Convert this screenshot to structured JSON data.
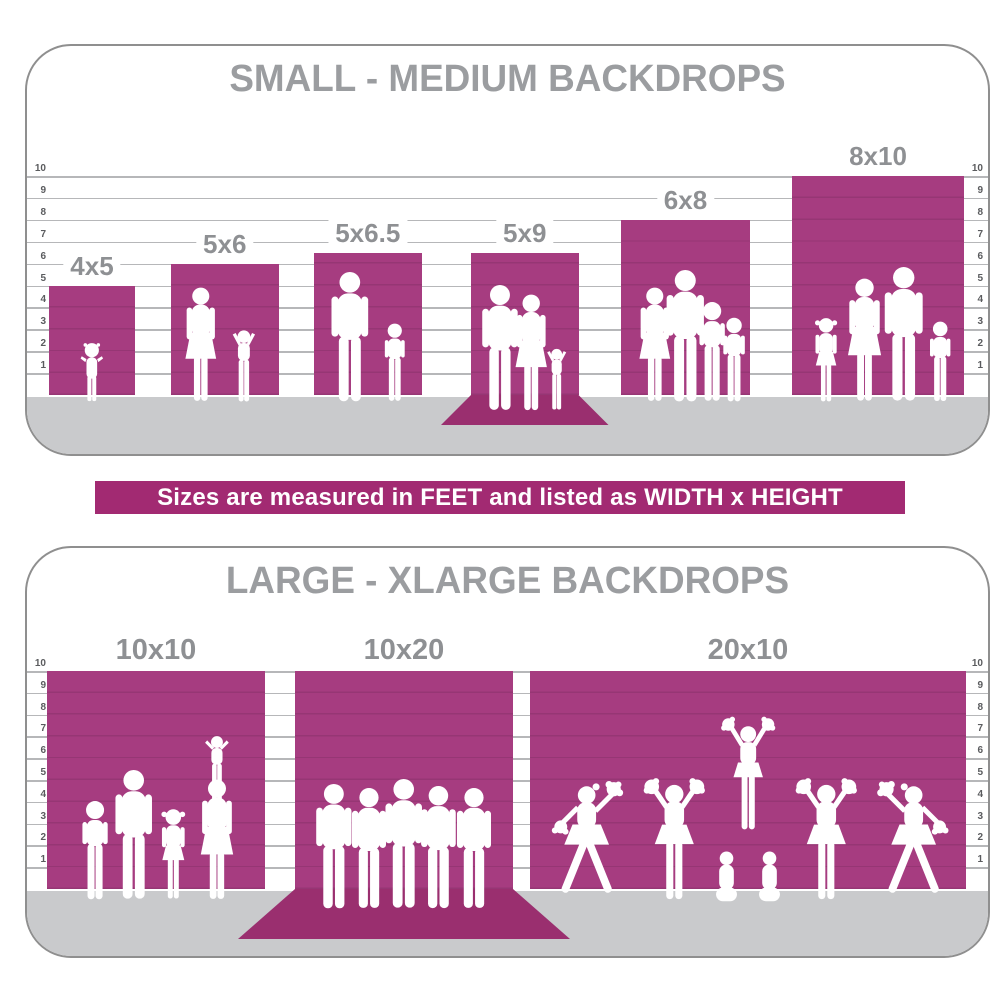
{
  "banner": {
    "text": "Sizes are measured in FEET and listed as WIDTH x HEIGHT"
  },
  "colors": {
    "bar": "#a63c80",
    "floor_sweep": "#9a2f6f",
    "banner_bg": "#a22a72",
    "banner_text": "#ffffff",
    "ground": "#c9cacc",
    "panel_border": "#8f8f8f",
    "title": "#9b9da0",
    "bar_label": "#8e9093",
    "tick": "#5a5b5e",
    "gridline": "#8f9194",
    "silhouette": "#ffffff"
  },
  "chart_data": [
    {
      "type": "bar",
      "title": "SMALL - MEDIUM BACKDROPS",
      "unit": "feet",
      "ylim": [
        0,
        10
      ],
      "axis_ticks": [
        1,
        2,
        3,
        4,
        5,
        6,
        7,
        8,
        9,
        10
      ],
      "categories": [
        "4x5",
        "5x6",
        "5x6.5",
        "5x9",
        "6x8",
        "8x10"
      ],
      "widths_ft": [
        4,
        5,
        5,
        5,
        6,
        8
      ],
      "heights_ft": [
        5,
        6,
        6.5,
        9,
        8,
        10
      ],
      "visible_heights_ft": [
        5,
        6,
        6.5,
        6.5,
        8,
        10
      ],
      "floor_sweep": [
        false,
        false,
        false,
        true,
        false,
        false
      ],
      "figures": [
        [
          {
            "t": "toddler",
            "cx": 0.5,
            "h": 2.7
          }
        ],
        [
          {
            "t": "woman",
            "cx": 0.28,
            "h": 5.2
          },
          {
            "t": "child-up",
            "cx": 0.68,
            "h": 3.4
          }
        ],
        [
          {
            "t": "man",
            "cx": 0.33,
            "h": 5.9
          },
          {
            "t": "boy",
            "cx": 0.75,
            "h": 3.6
          }
        ],
        [
          {
            "t": "man",
            "cx": 0.27,
            "h": 5.7,
            "dy": 9
          },
          {
            "t": "woman",
            "cx": 0.56,
            "h": 5.3,
            "dy": 9
          },
          {
            "t": "child-up",
            "cx": 0.8,
            "h": 2.9,
            "dy": 9
          }
        ],
        [
          {
            "t": "woman",
            "cx": 0.26,
            "h": 5.2
          },
          {
            "t": "man",
            "cx": 0.5,
            "h": 6.0
          },
          {
            "t": "boy",
            "cx": 0.71,
            "h": 4.6
          },
          {
            "t": "boy",
            "cx": 0.88,
            "h": 3.9
          }
        ],
        [
          {
            "t": "girl",
            "cx": 0.2,
            "h": 3.9
          },
          {
            "t": "woman",
            "cx": 0.42,
            "h": 5.6
          },
          {
            "t": "man",
            "cx": 0.65,
            "h": 6.1
          },
          {
            "t": "boy",
            "cx": 0.86,
            "h": 3.7
          }
        ]
      ]
    },
    {
      "type": "bar",
      "title": "LARGE - XLARGE BACKDROPS",
      "unit": "feet",
      "ylim": [
        0,
        10
      ],
      "axis_ticks": [
        1,
        2,
        3,
        4,
        5,
        6,
        7,
        8,
        9,
        10
      ],
      "categories": [
        "10x10",
        "10x20",
        "20x10"
      ],
      "widths_ft": [
        10,
        10,
        20
      ],
      "heights_ft": [
        10,
        20,
        10
      ],
      "visible_heights_ft": [
        10,
        10,
        10
      ],
      "floor_sweep": [
        false,
        true,
        false
      ],
      "figures": [
        [
          {
            "t": "boy",
            "cx": 0.22,
            "h": 4.6
          },
          {
            "t": "man",
            "cx": 0.4,
            "h": 5.9
          },
          {
            "t": "girl",
            "cx": 0.58,
            "h": 4.2
          },
          {
            "t": "woman",
            "cx": 0.78,
            "h": 5.5
          },
          {
            "t": "child-v",
            "cx": 0.78,
            "h": 3.2,
            "dy": -96
          }
        ],
        [
          {
            "t": "man",
            "cx": 0.18,
            "h": 5.7,
            "dy": 9
          },
          {
            "t": "man",
            "cx": 0.34,
            "h": 5.5,
            "dy": 9
          },
          {
            "t": "man",
            "cx": 0.5,
            "h": 5.9,
            "dy": 9
          },
          {
            "t": "man",
            "cx": 0.66,
            "h": 5.6,
            "dy": 9
          },
          {
            "t": "man",
            "cx": 0.82,
            "h": 5.5,
            "dy": 9
          }
        ],
        [
          {
            "t": "cheer-straddle",
            "cx": 0.13,
            "h": 5.4
          },
          {
            "t": "cheer-up",
            "cx": 0.33,
            "h": 5.6
          },
          {
            "t": "sitter",
            "cx": 0.45,
            "h": 2.4,
            "dy": 4
          },
          {
            "t": "flyer",
            "cx": 0.5,
            "h": 5.2,
            "dy": -70
          },
          {
            "t": "sitter",
            "cx": 0.55,
            "h": 2.4,
            "dy": 4
          },
          {
            "t": "cheer-up",
            "cx": 0.68,
            "h": 5.6,
            "flip": true
          },
          {
            "t": "cheer-straddle",
            "cx": 0.88,
            "h": 5.4,
            "flip": true
          }
        ]
      ]
    }
  ]
}
